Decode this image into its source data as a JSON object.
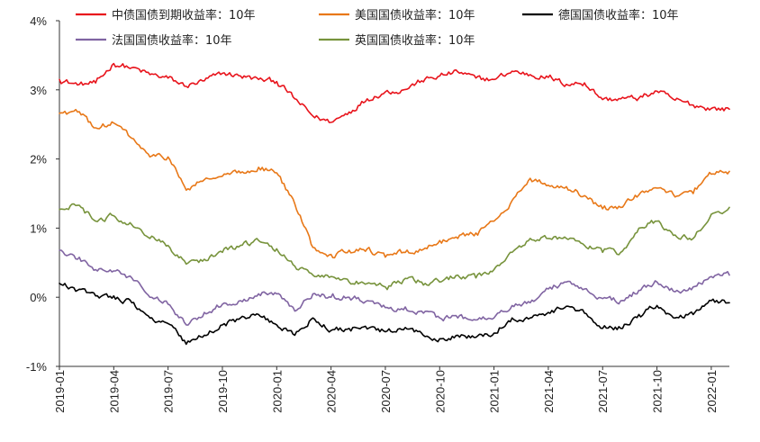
{
  "chart_data": {
    "type": "line",
    "title": "",
    "xlabel": "",
    "ylabel": "",
    "x_start": "2019-01",
    "x_end": "2022-02",
    "ylim": [
      -1,
      4
    ],
    "y_ticks": [
      "-1%",
      "0%",
      "1%",
      "2%",
      "3%",
      "4%"
    ],
    "x_ticks": [
      "2019-01",
      "2019-04",
      "2019-07",
      "2019-10",
      "2020-01",
      "2020-04",
      "2020-07",
      "2020-10",
      "2021-01",
      "2021-04",
      "2021-07",
      "2021-10",
      "2022-01"
    ],
    "grid": false,
    "legend_position": "top",
    "series": [
      {
        "name": "中债国债到期收益率：10年",
        "color": "#e8141c",
        "points": [
          [
            "2019-01",
            3.15
          ],
          [
            "2019-02",
            3.07
          ],
          [
            "2019-03",
            3.1
          ],
          [
            "2019-04",
            3.38
          ],
          [
            "2019-05",
            3.32
          ],
          [
            "2019-06",
            3.22
          ],
          [
            "2019-07",
            3.17
          ],
          [
            "2019-08",
            3.05
          ],
          [
            "2019-09",
            3.13
          ],
          [
            "2019-10",
            3.24
          ],
          [
            "2019-11",
            3.2
          ],
          [
            "2019-12",
            3.15
          ],
          [
            "2020-01",
            3.12
          ],
          [
            "2020-02",
            2.87
          ],
          [
            "2020-03",
            2.62
          ],
          [
            "2020-04",
            2.53
          ],
          [
            "2020-05",
            2.68
          ],
          [
            "2020-06",
            2.87
          ],
          [
            "2020-07",
            2.97
          ],
          [
            "2020-08",
            3.0
          ],
          [
            "2020-09",
            3.13
          ],
          [
            "2020-10",
            3.2
          ],
          [
            "2020-11",
            3.26
          ],
          [
            "2020-12",
            3.17
          ],
          [
            "2021-01",
            3.15
          ],
          [
            "2021-02",
            3.27
          ],
          [
            "2021-03",
            3.22
          ],
          [
            "2021-04",
            3.18
          ],
          [
            "2021-05",
            3.08
          ],
          [
            "2021-06",
            3.1
          ],
          [
            "2021-07",
            2.86
          ],
          [
            "2021-08",
            2.87
          ],
          [
            "2021-09",
            2.88
          ],
          [
            "2021-10",
            2.98
          ],
          [
            "2021-11",
            2.85
          ],
          [
            "2021-12",
            2.78
          ],
          [
            "2022-01",
            2.73
          ],
          [
            "2022-02",
            2.72
          ]
        ]
      },
      {
        "name": "美国国债收益率：10年",
        "color": "#e87818",
        "points": [
          [
            "2019-01",
            2.66
          ],
          [
            "2019-02",
            2.68
          ],
          [
            "2019-03",
            2.45
          ],
          [
            "2019-04",
            2.52
          ],
          [
            "2019-05",
            2.3
          ],
          [
            "2019-06",
            2.03
          ],
          [
            "2019-07",
            2.03
          ],
          [
            "2019-08",
            1.55
          ],
          [
            "2019-09",
            1.7
          ],
          [
            "2019-10",
            1.75
          ],
          [
            "2019-11",
            1.8
          ],
          [
            "2019-12",
            1.88
          ],
          [
            "2020-01",
            1.8
          ],
          [
            "2020-02",
            1.35
          ],
          [
            "2020-03",
            0.72
          ],
          [
            "2020-04",
            0.62
          ],
          [
            "2020-05",
            0.68
          ],
          [
            "2020-06",
            0.7
          ],
          [
            "2020-07",
            0.58
          ],
          [
            "2020-08",
            0.65
          ],
          [
            "2020-09",
            0.68
          ],
          [
            "2020-10",
            0.82
          ],
          [
            "2020-11",
            0.85
          ],
          [
            "2020-12",
            0.93
          ],
          [
            "2021-01",
            1.1
          ],
          [
            "2021-02",
            1.4
          ],
          [
            "2021-03",
            1.72
          ],
          [
            "2021-04",
            1.62
          ],
          [
            "2021-05",
            1.6
          ],
          [
            "2021-06",
            1.47
          ],
          [
            "2021-07",
            1.28
          ],
          [
            "2021-08",
            1.3
          ],
          [
            "2021-09",
            1.48
          ],
          [
            "2021-10",
            1.58
          ],
          [
            "2021-11",
            1.45
          ],
          [
            "2021-12",
            1.5
          ],
          [
            "2022-01",
            1.78
          ],
          [
            "2022-02",
            1.82
          ]
        ]
      },
      {
        "name": "德国国债收益率：10年",
        "color": "#000000",
        "points": [
          [
            "2019-01",
            0.2
          ],
          [
            "2019-02",
            0.1
          ],
          [
            "2019-03",
            0.02
          ],
          [
            "2019-04",
            0.02
          ],
          [
            "2019-05",
            -0.08
          ],
          [
            "2019-06",
            -0.3
          ],
          [
            "2019-07",
            -0.38
          ],
          [
            "2019-08",
            -0.68
          ],
          [
            "2019-09",
            -0.55
          ],
          [
            "2019-10",
            -0.4
          ],
          [
            "2019-11",
            -0.3
          ],
          [
            "2019-12",
            -0.25
          ],
          [
            "2020-01",
            -0.4
          ],
          [
            "2020-02",
            -0.55
          ],
          [
            "2020-03",
            -0.3
          ],
          [
            "2020-04",
            -0.48
          ],
          [
            "2020-05",
            -0.45
          ],
          [
            "2020-06",
            -0.46
          ],
          [
            "2020-07",
            -0.5
          ],
          [
            "2020-08",
            -0.47
          ],
          [
            "2020-09",
            -0.52
          ],
          [
            "2020-10",
            -0.6
          ],
          [
            "2020-11",
            -0.55
          ],
          [
            "2020-12",
            -0.58
          ],
          [
            "2021-01",
            -0.52
          ],
          [
            "2021-02",
            -0.3
          ],
          [
            "2021-03",
            -0.3
          ],
          [
            "2021-04",
            -0.22
          ],
          [
            "2021-05",
            -0.13
          ],
          [
            "2021-06",
            -0.23
          ],
          [
            "2021-07",
            -0.45
          ],
          [
            "2021-08",
            -0.45
          ],
          [
            "2021-09",
            -0.25
          ],
          [
            "2021-10",
            -0.12
          ],
          [
            "2021-11",
            -0.3
          ],
          [
            "2021-12",
            -0.25
          ],
          [
            "2022-01",
            -0.05
          ],
          [
            "2022-02",
            -0.08
          ]
        ]
      },
      {
        "name": "法国国债收益率：10年",
        "color": "#8064a2",
        "points": [
          [
            "2019-01",
            0.68
          ],
          [
            "2019-02",
            0.55
          ],
          [
            "2019-03",
            0.4
          ],
          [
            "2019-04",
            0.38
          ],
          [
            "2019-05",
            0.28
          ],
          [
            "2019-06",
            0.0
          ],
          [
            "2019-07",
            -0.1
          ],
          [
            "2019-08",
            -0.4
          ],
          [
            "2019-09",
            -0.22
          ],
          [
            "2019-10",
            -0.1
          ],
          [
            "2019-11",
            -0.05
          ],
          [
            "2019-12",
            0.05
          ],
          [
            "2020-01",
            0.05
          ],
          [
            "2020-02",
            -0.2
          ],
          [
            "2020-03",
            0.05
          ],
          [
            "2020-04",
            0.0
          ],
          [
            "2020-05",
            0.0
          ],
          [
            "2020-06",
            -0.05
          ],
          [
            "2020-07",
            -0.15
          ],
          [
            "2020-08",
            -0.18
          ],
          [
            "2020-09",
            -0.2
          ],
          [
            "2020-10",
            -0.3
          ],
          [
            "2020-11",
            -0.3
          ],
          [
            "2020-12",
            -0.33
          ],
          [
            "2021-01",
            -0.3
          ],
          [
            "2021-02",
            -0.12
          ],
          [
            "2021-03",
            -0.08
          ],
          [
            "2021-04",
            0.12
          ],
          [
            "2021-05",
            0.22
          ],
          [
            "2021-06",
            0.12
          ],
          [
            "2021-07",
            -0.02
          ],
          [
            "2021-08",
            -0.05
          ],
          [
            "2021-09",
            0.1
          ],
          [
            "2021-10",
            0.22
          ],
          [
            "2021-11",
            0.08
          ],
          [
            "2021-12",
            0.15
          ],
          [
            "2022-01",
            0.3
          ],
          [
            "2022-02",
            0.32
          ]
        ]
      },
      {
        "name": "英国国债收益率：10年",
        "color": "#77933c",
        "points": [
          [
            "2019-01",
            1.27
          ],
          [
            "2019-02",
            1.33
          ],
          [
            "2019-03",
            1.1
          ],
          [
            "2019-04",
            1.18
          ],
          [
            "2019-05",
            1.05
          ],
          [
            "2019-06",
            0.85
          ],
          [
            "2019-07",
            0.75
          ],
          [
            "2019-08",
            0.48
          ],
          [
            "2019-09",
            0.55
          ],
          [
            "2019-10",
            0.65
          ],
          [
            "2019-11",
            0.75
          ],
          [
            "2019-12",
            0.82
          ],
          [
            "2020-01",
            0.7
          ],
          [
            "2020-02",
            0.45
          ],
          [
            "2020-03",
            0.32
          ],
          [
            "2020-04",
            0.3
          ],
          [
            "2020-05",
            0.22
          ],
          [
            "2020-06",
            0.2
          ],
          [
            "2020-07",
            0.15
          ],
          [
            "2020-08",
            0.25
          ],
          [
            "2020-09",
            0.22
          ],
          [
            "2020-10",
            0.22
          ],
          [
            "2020-11",
            0.32
          ],
          [
            "2020-12",
            0.28
          ],
          [
            "2021-01",
            0.4
          ],
          [
            "2021-02",
            0.65
          ],
          [
            "2021-03",
            0.85
          ],
          [
            "2021-04",
            0.85
          ],
          [
            "2021-05",
            0.85
          ],
          [
            "2021-06",
            0.75
          ],
          [
            "2021-07",
            0.65
          ],
          [
            "2021-08",
            0.65
          ],
          [
            "2021-09",
            1.0
          ],
          [
            "2021-10",
            1.1
          ],
          [
            "2021-11",
            0.9
          ],
          [
            "2021-12",
            0.85
          ],
          [
            "2022-01",
            1.2
          ],
          [
            "2022-02",
            1.3
          ]
        ]
      }
    ]
  }
}
